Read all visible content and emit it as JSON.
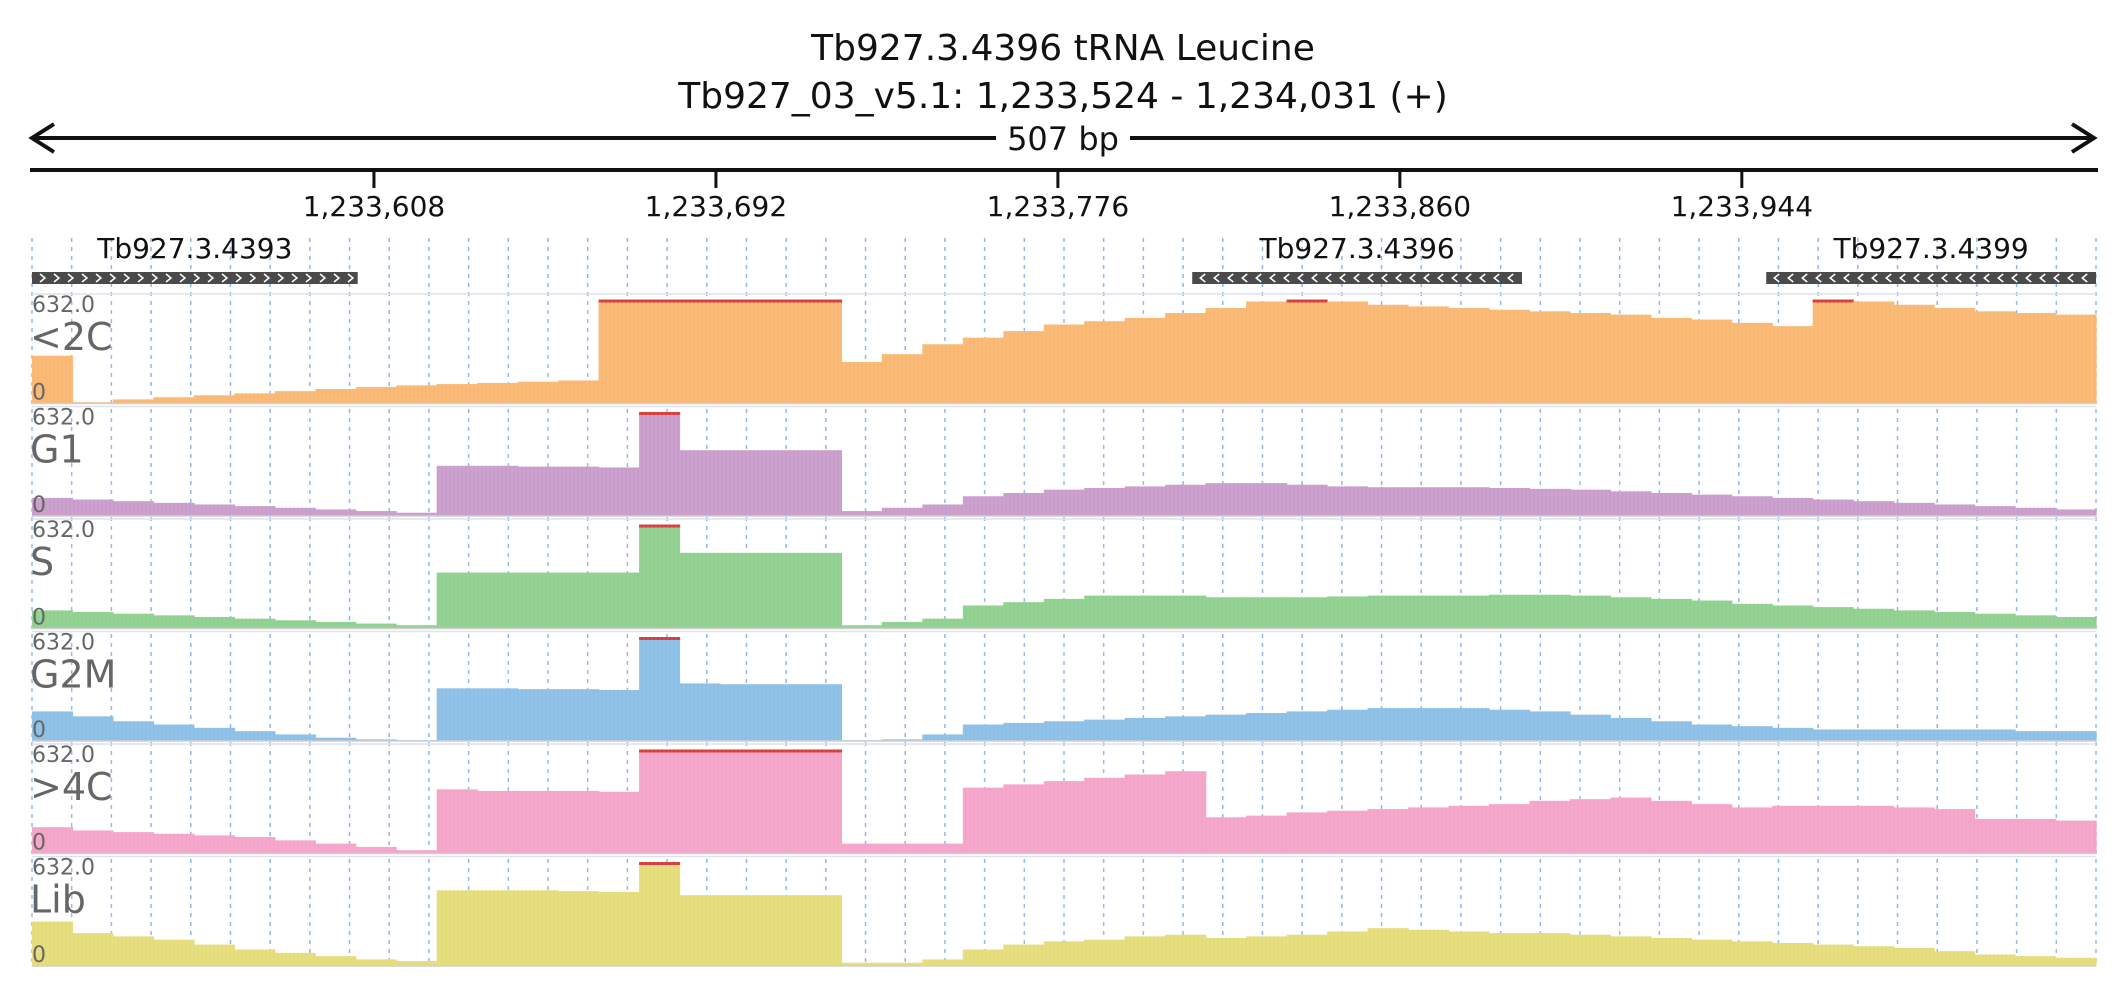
{
  "header": {
    "title": "Tb927.3.4396  tRNA Leucine",
    "locus": "Tb927_03_v5.1: 1,233,524 - 1,234,031 (+)",
    "span_label": "507 bp"
  },
  "colors": {
    "<2C": "#f9b772",
    "G1": "#c99ccb",
    "S": "#8fd08f",
    "G2M": "#8cbfe6",
    ">4C": "#f4a3c9",
    "Lib": "#e4dc78",
    "clip": "#d93a3a",
    "gene": "#4a4a4a",
    "gridline": "#8fb8e6"
  },
  "chart_data": {
    "type": "area",
    "region": {
      "chrom": "Tb927_03_v5.1",
      "start": 1233524,
      "end": 1234031,
      "strand": "+"
    },
    "xticks": [
      1233608,
      1233692,
      1233776,
      1233860,
      1233944
    ],
    "xtick_labels": [
      "1,233,608",
      "1,233,692",
      "1,233,776",
      "1,233,860",
      "1,233,944"
    ],
    "genes": [
      {
        "name": "Tb927.3.4393",
        "start": 1233524,
        "end": 1233604,
        "strand": "+"
      },
      {
        "name": "Tb927.3.4396",
        "start": 1233809,
        "end": 1233890,
        "strand": "-"
      },
      {
        "name": "Tb927.3.4399",
        "start": 1233950,
        "end": 1234031,
        "strand": "-"
      }
    ],
    "x_bins": [
      1233524,
      1233534,
      1233544,
      1233554,
      1233564,
      1233574,
      1233584,
      1233594,
      1233604,
      1233614,
      1233624,
      1233634,
      1233644,
      1233654,
      1233664,
      1233674,
      1233684,
      1233694,
      1233704,
      1233714,
      1233724,
      1233734,
      1233744,
      1233754,
      1233764,
      1233774,
      1233784,
      1233794,
      1233804,
      1233814,
      1233824,
      1233834,
      1233844,
      1233854,
      1233864,
      1233874,
      1233884,
      1233894,
      1233904,
      1233914,
      1233924,
      1233934,
      1233944,
      1233954,
      1233964,
      1233974,
      1233984,
      1233994,
      1234004,
      1234014,
      1234024
    ],
    "series": [
      {
        "name": "<2C",
        "scale_max": 632.0,
        "scale_min": 0,
        "scale_label": "632.0",
        "zero_label": "0",
        "values": [
          290,
          8,
          25,
          38,
          50,
          62,
          75,
          88,
          100,
          110,
          118,
          125,
          132,
          140,
          632,
          632,
          632,
          632,
          632,
          632,
          252,
          300,
          360,
          400,
          440,
          480,
          500,
          520,
          550,
          580,
          620,
          632,
          620,
          600,
          590,
          580,
          570,
          560,
          550,
          540,
          520,
          510,
          490,
          470,
          632,
          620,
          600,
          580,
          560,
          550,
          540
        ]
      },
      {
        "name": "G1",
        "scale_max": 632.0,
        "scale_min": 0,
        "scale_label": "632.0",
        "zero_label": "0",
        "values": [
          110,
          100,
          90,
          80,
          70,
          60,
          50,
          40,
          30,
          20,
          305,
          305,
          300,
          300,
          295,
          632,
          400,
          400,
          400,
          400,
          30,
          50,
          70,
          120,
          140,
          160,
          170,
          180,
          190,
          200,
          200,
          190,
          180,
          175,
          175,
          175,
          170,
          165,
          160,
          150,
          140,
          130,
          120,
          110,
          100,
          90,
          80,
          70,
          60,
          50,
          40
        ]
      },
      {
        "name": "S",
        "scale_max": 632.0,
        "scale_min": 0,
        "scale_label": "632.0",
        "zero_label": "0",
        "values": [
          110,
          100,
          90,
          80,
          70,
          60,
          50,
          40,
          30,
          20,
          340,
          340,
          340,
          340,
          340,
          632,
          460,
          460,
          460,
          460,
          20,
          40,
          60,
          140,
          160,
          180,
          200,
          200,
          200,
          190,
          190,
          190,
          195,
          200,
          200,
          200,
          205,
          205,
          200,
          190,
          180,
          170,
          150,
          140,
          130,
          120,
          110,
          100,
          90,
          80,
          70
        ]
      },
      {
        "name": "G2M",
        "scale_max": 632.0,
        "scale_min": 0,
        "scale_label": "632.0",
        "zero_label": "0",
        "values": [
          180,
          150,
          120,
          100,
          80,
          60,
          40,
          20,
          10,
          5,
          320,
          320,
          315,
          315,
          310,
          632,
          350,
          345,
          345,
          345,
          5,
          10,
          40,
          100,
          110,
          120,
          130,
          140,
          150,
          160,
          170,
          180,
          190,
          200,
          200,
          200,
          190,
          180,
          160,
          140,
          120,
          100,
          90,
          80,
          70,
          70,
          70,
          70,
          70,
          60,
          60
        ]
      },
      {
        "name": ">4C",
        "scale_max": 632.0,
        "scale_min": 0,
        "scale_label": "632.0",
        "zero_label": "0",
        "values": [
          160,
          140,
          130,
          120,
          110,
          100,
          80,
          60,
          40,
          20,
          390,
          380,
          380,
          380,
          375,
          632,
          632,
          632,
          632,
          632,
          60,
          60,
          60,
          400,
          420,
          440,
          460,
          480,
          500,
          220,
          230,
          250,
          260,
          270,
          280,
          290,
          300,
          320,
          330,
          340,
          320,
          300,
          280,
          290,
          290,
          290,
          280,
          270,
          210,
          210,
          200
        ]
      },
      {
        "name": "Lib",
        "scale_max": 632.0,
        "scale_min": 0,
        "scale_label": "632.0",
        "zero_label": "0",
        "values": [
          270,
          200,
          180,
          160,
          130,
          100,
          80,
          60,
          40,
          30,
          460,
          460,
          460,
          455,
          450,
          632,
          430,
          430,
          430,
          430,
          20,
          20,
          40,
          100,
          130,
          150,
          160,
          180,
          190,
          170,
          180,
          190,
          210,
          230,
          220,
          210,
          200,
          200,
          190,
          180,
          170,
          160,
          150,
          140,
          130,
          120,
          110,
          90,
          70,
          60,
          50
        ]
      }
    ]
  }
}
